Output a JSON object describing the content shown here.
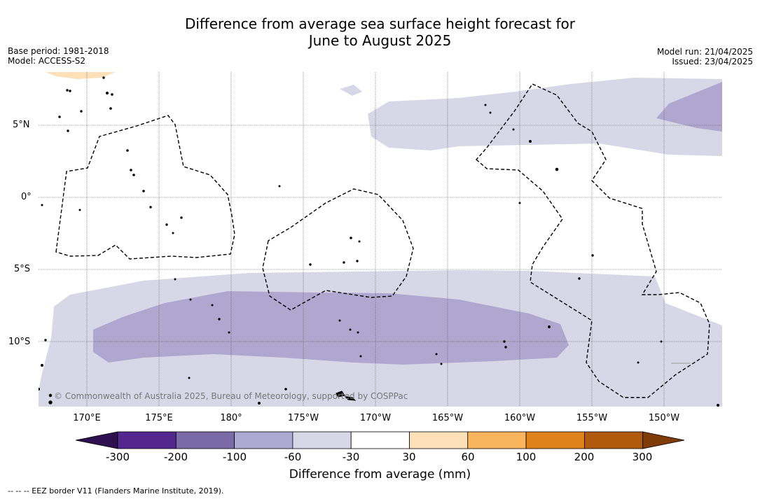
{
  "title_line1": "Difference from average sea surface height forecast for",
  "title_line2": "June to August 2025",
  "base_period": "Base period: 1981-2018",
  "model": "Model: ACCESS-S2",
  "model_run": "Model run: 21/04/2025",
  "issued": "Issued: 23/04/2025",
  "longitude_labels": [
    "170°E",
    "175°E",
    "180°",
    "175°W",
    "170°W",
    "165°W",
    "160°W",
    "155°W",
    "150°W"
  ],
  "latitude_labels": [
    "5°N",
    "0°",
    "5°S",
    "10°S"
  ],
  "copyright": "© Commonwealth of Australia 2025, Bureau of Meteorology, supported by COSPPac",
  "colorbar": {
    "label": "Difference from average (mm)",
    "ticks": [
      "-300",
      "-200",
      "-100",
      "-60",
      "-30",
      "30",
      "60",
      "100",
      "200",
      "300"
    ],
    "colors": [
      "#2e0f4f",
      "#54278f",
      "#7a6ba8",
      "#aca8cf",
      "#d8d7e8",
      "#ffffff",
      "#fde0b7",
      "#f8b55e",
      "#df821b",
      "#b15a0d",
      "#7f3b08"
    ]
  },
  "legend_eez": "-- -- -- EEZ border V11 (Flanders Marine Institute, 2019)."
}
